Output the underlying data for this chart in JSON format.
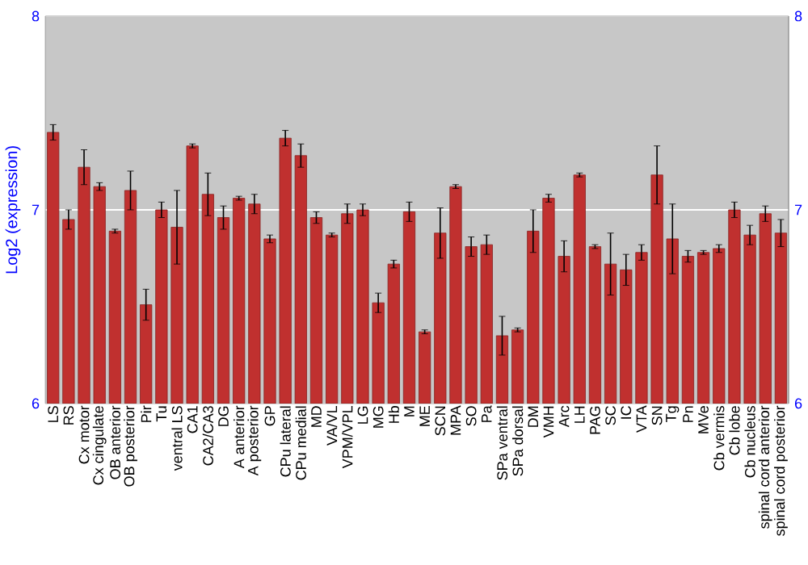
{
  "chart_data": {
    "type": "bar",
    "ylabel": "Log2 (expression)",
    "categories": [
      "LS",
      "RS",
      "Cx motor",
      "Cx cingulate",
      "OB anterior",
      "OB posterior",
      "Pir",
      "Tu",
      "ventral LS",
      "CA1",
      "CA2/CA3",
      "DG",
      "A anterior",
      "A posterior",
      "GP",
      "CPu lateral",
      "CPu medial",
      "MD",
      "VA/VL",
      "VPM/VPL",
      "LG",
      "MG",
      "Hb",
      "M",
      "ME",
      "SCN",
      "MPA",
      "SO",
      "Pa",
      "SPa ventral",
      "SPa dorsal",
      "DM",
      "VMH",
      "Arc",
      "LH",
      "PAG",
      "SC",
      "IC",
      "VTA",
      "SN",
      "Tg",
      "Pn",
      "MVe",
      "Cb vermis",
      "Cb lobe",
      "Cb nucleus",
      "spinal cord anterior",
      "spinal cord posterior"
    ],
    "values": [
      7.4,
      6.95,
      7.22,
      7.12,
      6.89,
      7.1,
      6.51,
      7.0,
      6.91,
      7.33,
      7.08,
      6.96,
      7.06,
      7.03,
      6.85,
      7.37,
      7.28,
      6.96,
      6.87,
      6.98,
      7.0,
      6.52,
      6.72,
      6.99,
      6.37,
      6.88,
      7.12,
      6.81,
      6.82,
      6.35,
      6.38,
      6.89,
      7.06,
      6.76,
      7.18,
      6.81,
      6.72,
      6.69,
      6.78,
      7.18,
      6.85,
      6.76,
      6.78,
      6.8,
      7.0,
      6.87,
      6.98,
      6.88
    ],
    "errors": [
      0.04,
      0.05,
      0.09,
      0.02,
      0.01,
      0.1,
      0.08,
      0.04,
      0.19,
      0.01,
      0.11,
      0.06,
      0.01,
      0.05,
      0.02,
      0.04,
      0.06,
      0.03,
      0.01,
      0.05,
      0.03,
      0.05,
      0.02,
      0.05,
      0.01,
      0.13,
      0.01,
      0.05,
      0.05,
      0.1,
      0.01,
      0.11,
      0.02,
      0.08,
      0.01,
      0.01,
      0.16,
      0.08,
      0.04,
      0.15,
      0.18,
      0.03,
      0.01,
      0.02,
      0.04,
      0.05,
      0.04,
      0.07
    ],
    "color": "#c0302f",
    "ylim": [
      6,
      8
    ],
    "yticks": [
      6,
      7,
      8
    ],
    "y2lim": [
      6,
      8
    ],
    "y2ticks": [
      6,
      7,
      8
    ],
    "grid": "y"
  }
}
